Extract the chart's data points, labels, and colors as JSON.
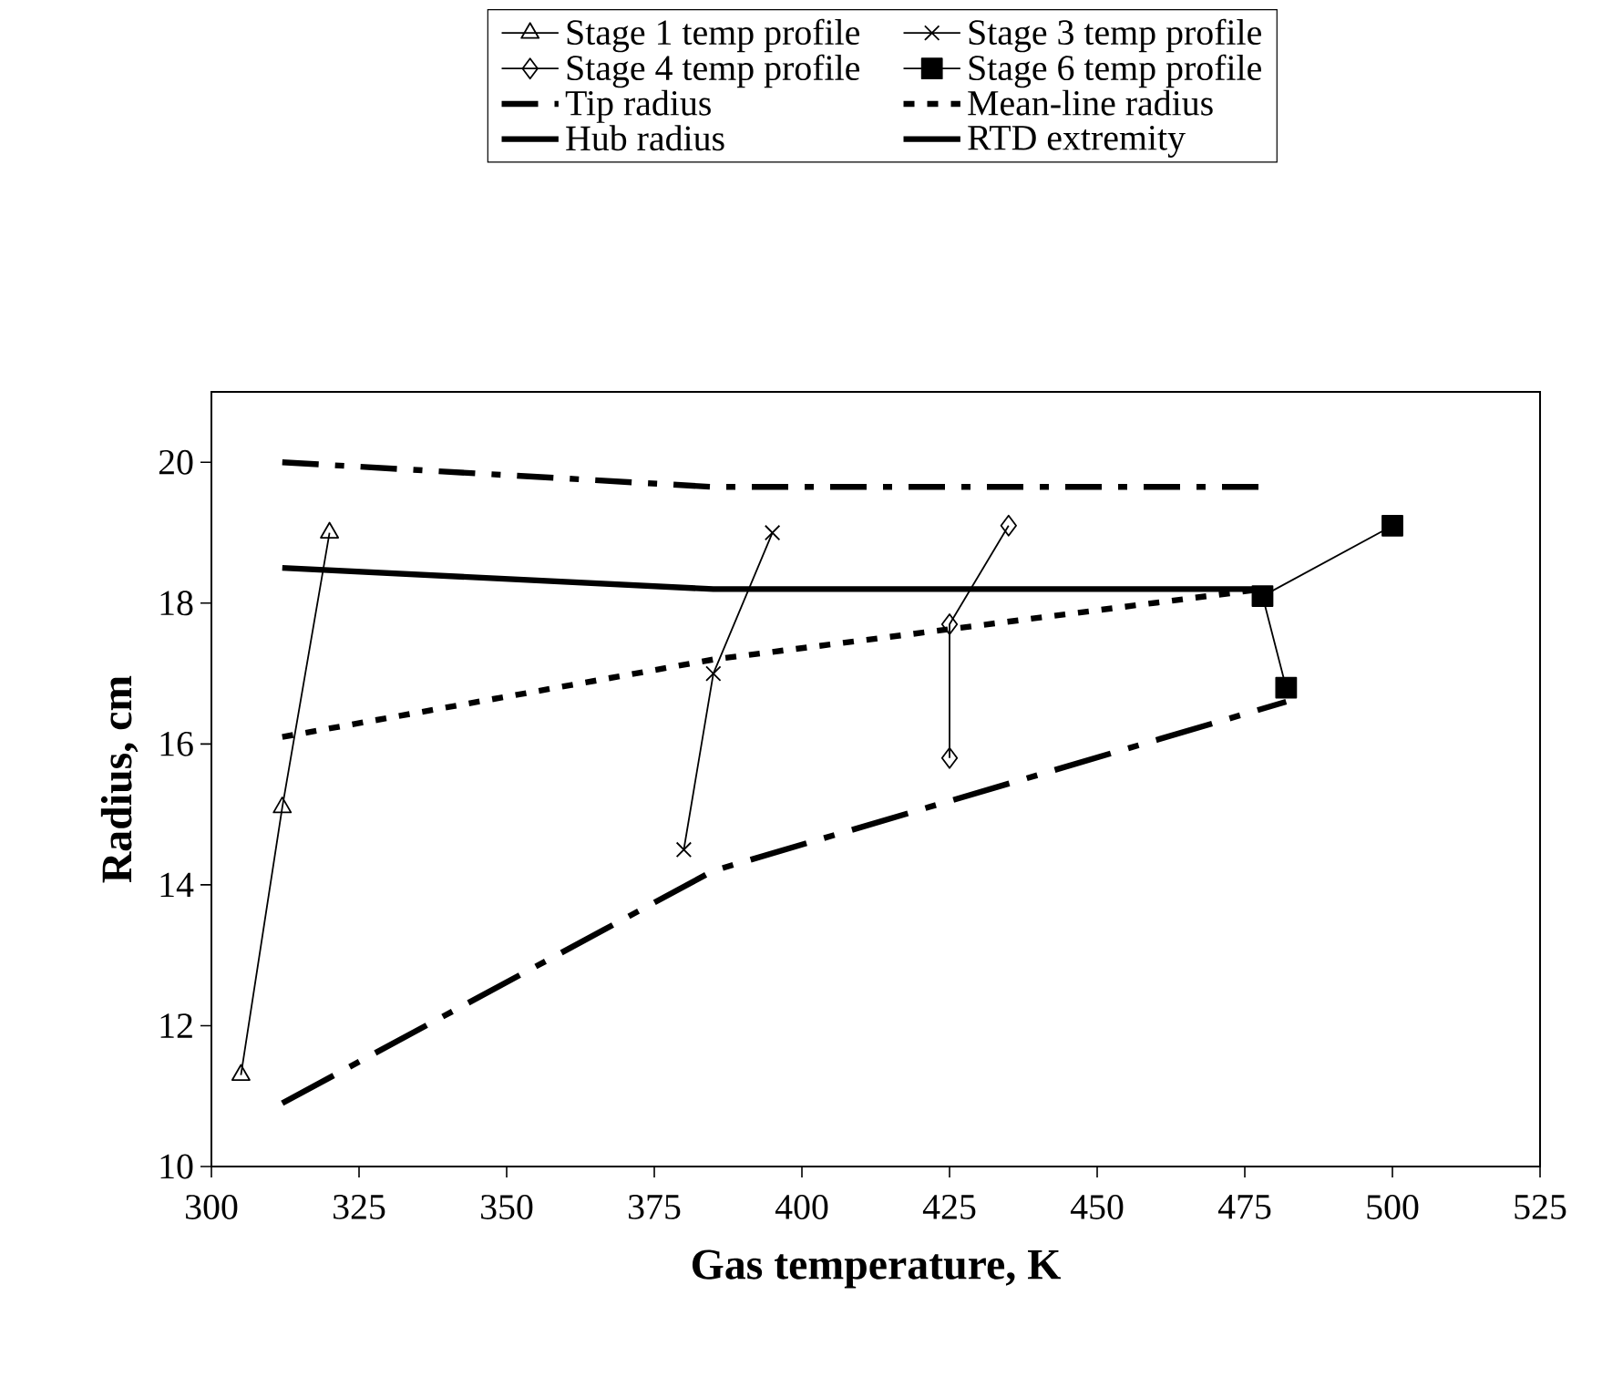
{
  "chart_data": {
    "type": "line",
    "xlabel": "Gas temperature, K",
    "ylabel": "Radius, cm",
    "xlim": [
      300,
      525
    ],
    "ylim": [
      10,
      21
    ],
    "xticks": [
      300,
      325,
      350,
      375,
      400,
      425,
      450,
      475,
      500,
      525
    ],
    "yticks": [
      10,
      12,
      14,
      16,
      18,
      20
    ],
    "legend": "top",
    "series": [
      {
        "name": "Stage 1 temp profile",
        "color": "#000000",
        "marker": "triangle",
        "line_style": "solid",
        "x": [
          305,
          312,
          320
        ],
        "values": [
          11.3,
          15.1,
          19.0
        ]
      },
      {
        "name": "Stage 3 temp profile",
        "color": "#000000",
        "marker": "cross",
        "line_style": "solid",
        "x": [
          380,
          385,
          395
        ],
        "values": [
          14.5,
          17.0,
          19.0
        ]
      },
      {
        "name": "Stage 4 temp profile",
        "color": "#000000",
        "marker": "diamond",
        "line_style": "solid",
        "x": [
          425,
          425,
          435
        ],
        "values": [
          15.8,
          17.7,
          19.1
        ]
      },
      {
        "name": "Stage 6 temp profile",
        "color": "#000000",
        "marker": "square",
        "line_style": "solid",
        "x": [
          482,
          478,
          500
        ],
        "values": [
          16.8,
          18.1,
          19.1
        ]
      },
      {
        "name": "Tip radius",
        "color": "#000000",
        "marker": "none",
        "line_style": "dashdot",
        "x": [
          312,
          385,
          478
        ],
        "values": [
          20.0,
          19.65,
          19.65
        ]
      },
      {
        "name": "Mean-line radius",
        "color": "#000000",
        "marker": "none",
        "line_style": "dashed",
        "x": [
          312,
          385,
          478
        ],
        "values": [
          16.1,
          17.2,
          18.2
        ]
      },
      {
        "name": "Hub radius",
        "color": "#000000",
        "marker": "none",
        "line_style": "longdashdot",
        "x": [
          312,
          385,
          482
        ],
        "values": [
          10.9,
          14.2,
          16.6
        ]
      },
      {
        "name": "RTD extremity",
        "color": "#000000",
        "marker": "none",
        "line_style": "solid",
        "x": [
          312,
          385,
          478
        ],
        "values": [
          18.5,
          18.2,
          18.2
        ]
      }
    ]
  }
}
